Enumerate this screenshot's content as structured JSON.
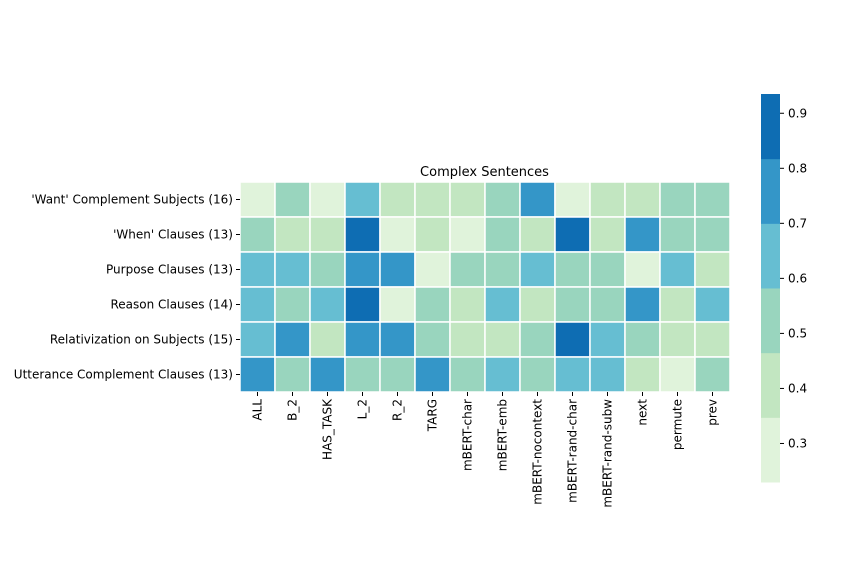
{
  "chart_data": {
    "type": "heatmap",
    "title": "Complex Sentences",
    "xlabel": "",
    "ylabel": "",
    "columns": [
      "ALL",
      "B_2",
      "HAS_TASK",
      "L_2",
      "R_2",
      "TARG",
      "mBERT-char",
      "mBERT-emb",
      "mBERT-nocontext",
      "mBERT-rand-char",
      "mBERT-rand-subw",
      "next",
      "permute",
      "prev"
    ],
    "rows": [
      "'Want' Complement Subjects (16)",
      "'When' Clauses (13)",
      "Purpose Clauses (13)",
      "Reason Clauses (14)",
      "Relativization on Subjects (15)",
      "Utterance Complement Clauses (13)"
    ],
    "values": [
      [
        0.3,
        0.5,
        0.3,
        0.6,
        0.4,
        0.4,
        0.4,
        0.5,
        0.7,
        0.3,
        0.4,
        0.4,
        0.5,
        0.5
      ],
      [
        0.5,
        0.4,
        0.4,
        0.9,
        0.3,
        0.4,
        0.3,
        0.5,
        0.4,
        0.9,
        0.4,
        0.7,
        0.5,
        0.5
      ],
      [
        0.6,
        0.6,
        0.5,
        0.7,
        0.7,
        0.3,
        0.5,
        0.5,
        0.6,
        0.5,
        0.5,
        0.3,
        0.6,
        0.4
      ],
      [
        0.6,
        0.5,
        0.6,
        0.9,
        0.3,
        0.5,
        0.4,
        0.6,
        0.4,
        0.5,
        0.5,
        0.7,
        0.4,
        0.6
      ],
      [
        0.6,
        0.7,
        0.4,
        0.7,
        0.7,
        0.5,
        0.4,
        0.4,
        0.5,
        0.9,
        0.6,
        0.5,
        0.4,
        0.4
      ],
      [
        0.7,
        0.5,
        0.7,
        0.5,
        0.5,
        0.7,
        0.5,
        0.6,
        0.5,
        0.6,
        0.6,
        0.4,
        0.3,
        0.5
      ]
    ],
    "vmin": 0.23,
    "vmax": 0.935,
    "colorbar": {
      "ticks": [
        "0.3",
        "0.4",
        "0.5",
        "0.6",
        "0.7",
        "0.8",
        "0.9"
      ],
      "tick_values": [
        0.3,
        0.4,
        0.5,
        0.6,
        0.7,
        0.8,
        0.9
      ],
      "bins": [
        {
          "from": 0.23,
          "to": 0.3475,
          "color": "#e0f3db"
        },
        {
          "from": 0.3475,
          "to": 0.465,
          "color": "#c2e6c1"
        },
        {
          "from": 0.465,
          "to": 0.5825,
          "color": "#99d5be"
        },
        {
          "from": 0.5825,
          "to": 0.7,
          "color": "#66bed2"
        },
        {
          "from": 0.7,
          "to": 0.8175,
          "color": "#3496c8"
        },
        {
          "from": 0.8175,
          "to": 0.935,
          "color": "#0e6db3"
        }
      ]
    },
    "grid": true,
    "legend": "colorbar-right"
  }
}
